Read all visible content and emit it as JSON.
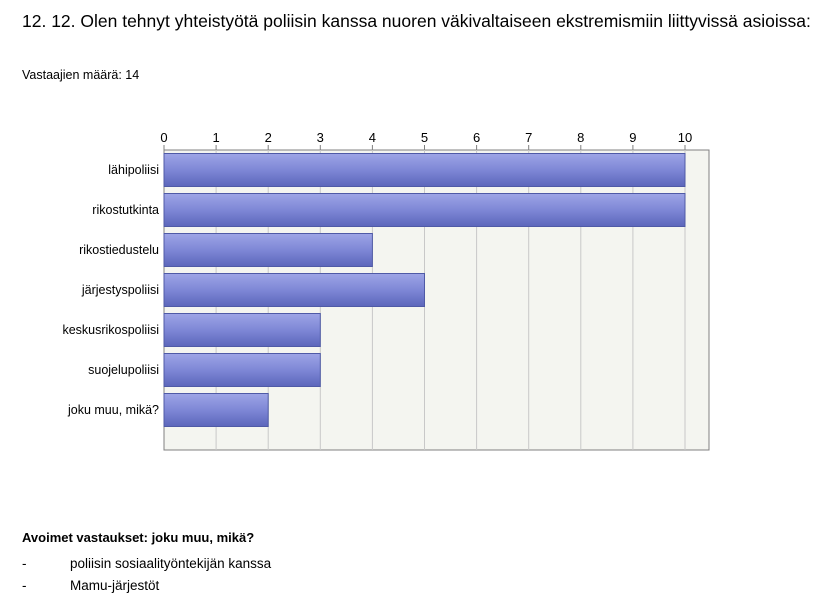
{
  "question": {
    "title": "12. 12. Olen tehnyt yhteistyötä poliisin kanssa nuoren väkivaltaiseen ekstremismiin liittyvissä asioissa:",
    "respondents": "Vastaajien määrä: 14"
  },
  "chart_data": {
    "type": "bar",
    "orientation": "horizontal",
    "categories": [
      "lähipoliisi",
      "rikostutkinta",
      "rikostiedustelu",
      "järjestyspoliisi",
      "keskusrikospoliisi",
      "suojelupoliisi",
      "joku muu, mikä?"
    ],
    "values": [
      10,
      10,
      4,
      5,
      3,
      3,
      2
    ],
    "xlim": [
      0,
      10.5
    ],
    "ticks": [
      "0",
      "1",
      "2",
      "3",
      "4",
      "5",
      "6",
      "7",
      "8",
      "9",
      "10"
    ],
    "grid": true,
    "bar_color": "#7d86d4",
    "bar_edge_color": "#4f5aa6",
    "plot_background": "#f4f5f0"
  },
  "open_answers": {
    "title": "Avoimet vastaukset: joku muu, mikä?",
    "bullet": "-",
    "items": [
      "poliisin sosiaalityöntekijän kanssa",
      "Mamu-järjestöt"
    ]
  }
}
